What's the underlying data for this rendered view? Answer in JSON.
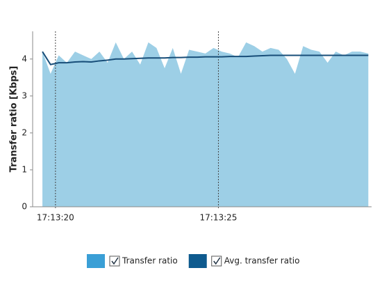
{
  "chart_data": {
    "type": "area",
    "y_label": "Transfer ratio [Kbps]",
    "x": [
      19.6,
      19.85,
      20.1,
      20.35,
      20.6,
      20.85,
      21.1,
      21.35,
      21.6,
      21.85,
      22.1,
      22.35,
      22.6,
      22.85,
      23.1,
      23.35,
      23.6,
      23.85,
      24.1,
      24.35,
      24.6,
      24.85,
      25.1,
      25.35,
      25.6,
      25.85,
      26.1,
      26.35,
      26.6,
      26.85,
      27.1,
      27.35,
      27.6,
      27.85,
      28.1,
      28.35,
      28.6,
      28.85,
      29.1,
      29.35,
      29.6
    ],
    "series": [
      {
        "name": "Transfer ratio",
        "color": "#9dcfe6",
        "legend_color": "#3a9fd6",
        "kind": "area",
        "values": [
          4.2,
          3.6,
          4.1,
          3.9,
          4.2,
          4.1,
          4.0,
          4.2,
          3.9,
          4.45,
          4.0,
          4.2,
          3.85,
          4.45,
          4.3,
          3.75,
          4.3,
          3.6,
          4.25,
          4.2,
          4.15,
          4.3,
          4.2,
          4.15,
          4.05,
          4.45,
          4.35,
          4.2,
          4.3,
          4.25,
          4.0,
          3.6,
          4.35,
          4.25,
          4.2,
          3.9,
          4.2,
          4.1,
          4.2,
          4.2,
          4.15
        ]
      },
      {
        "name": "Avg. transfer ratio",
        "color": "#174d78",
        "legend_color": "#0e5a8e",
        "kind": "line",
        "values": [
          4.2,
          3.85,
          3.9,
          3.9,
          3.92,
          3.93,
          3.92,
          3.95,
          3.97,
          4.0,
          4.0,
          4.01,
          4.02,
          4.03,
          4.03,
          4.03,
          4.04,
          4.04,
          4.05,
          4.05,
          4.06,
          4.06,
          4.06,
          4.07,
          4.07,
          4.07,
          4.08,
          4.09,
          4.1,
          4.1,
          4.1,
          4.1,
          4.1,
          4.1,
          4.1,
          4.1,
          4.1,
          4.1,
          4.1,
          4.1,
          4.1
        ]
      }
    ],
    "xlim": [
      19.3,
      29.7
    ],
    "xticks": [
      {
        "value": 20,
        "label": "17:13:20"
      },
      {
        "value": 25,
        "label": "17:13:25"
      }
    ],
    "ylim": [
      0,
      4.75
    ],
    "yticks": [
      0,
      1,
      2,
      3,
      4
    ],
    "x_grid": true,
    "legend": "bottom"
  }
}
